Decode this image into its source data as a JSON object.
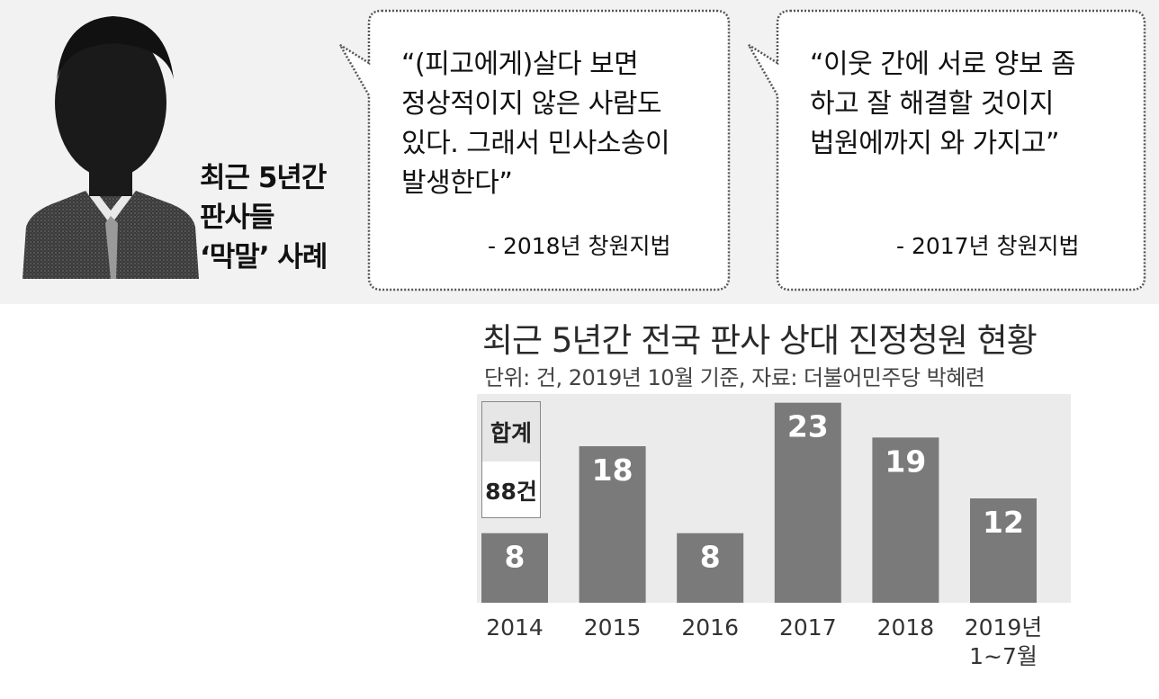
{
  "figure_label": {
    "line1": "최근 5년간",
    "line2": "판사들",
    "line3": "‘막말’ 사례"
  },
  "quotes": [
    {
      "lines": [
        "“(피고에게)살다 보면",
        "정상적이지 않은 사람도",
        "있다. 그래서 민사소송이",
        "발생한다”"
      ],
      "source": "- 2018년 창원지법"
    },
    {
      "lines": [
        "“이웃 간에 서로 양보 좀",
        "하고 잘 해결할 것이지",
        "법원에까지 와 가지고”"
      ],
      "source": "- 2017년 창원지법"
    }
  ],
  "colors": {
    "bar": "#7a7a7a",
    "bar_label": "#ffffff",
    "plot_background": "#ebebeb",
    "band_background": "#f2f2f2"
  },
  "chart_data": {
    "type": "bar",
    "title": "최근 5년간 전국 판사 상대 진정청원 현황",
    "subtitle": "단위: 건, 2019년 10월 기준, 자료: 더불어민주당 박혜련",
    "categories": [
      [
        "2014"
      ],
      [
        "2015"
      ],
      [
        "2016"
      ],
      [
        "2017"
      ],
      [
        "2018"
      ],
      [
        "2019년",
        "1~7월"
      ]
    ],
    "values": [
      8,
      18,
      8,
      23,
      19,
      12
    ],
    "ylim": [
      0,
      24
    ],
    "total": {
      "label": "합계",
      "value": "88건"
    },
    "grid": false,
    "legend": "none"
  }
}
